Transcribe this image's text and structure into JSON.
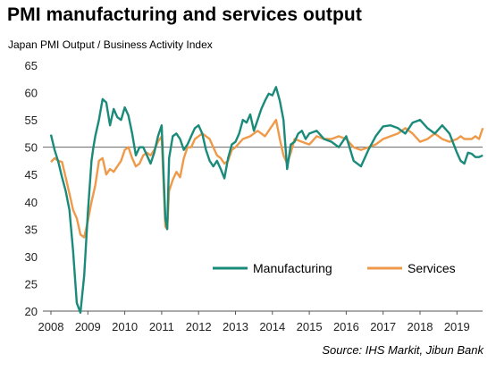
{
  "title": "PMI manufacturing and services output",
  "ylabel": "Japan PMI Output / Business Activity Index",
  "source": "Source: IHS Markit, Jibun Bank",
  "colors": {
    "manufacturing": "#1a8a7a",
    "services": "#ef9a4a",
    "axis": "#555555",
    "refline": "#666666"
  },
  "chart_data": {
    "type": "line",
    "title": "PMI manufacturing and services output",
    "ylabel": "Japan PMI Output / Business Activity Index",
    "xlabel": "",
    "ylim": [
      20,
      65
    ],
    "y_ticks": [
      20,
      25,
      30,
      35,
      40,
      45,
      50,
      55,
      60,
      65
    ],
    "x_tick_labels": [
      "2008",
      "2009",
      "2010",
      "2011",
      "2012",
      "2013",
      "2014",
      "2015",
      "2016",
      "2017",
      "2018",
      "2019"
    ],
    "x_range": [
      2008.0,
      2019.7
    ],
    "reference_line": 50,
    "legend_position": "bottom-right",
    "grid": false,
    "series": [
      {
        "name": "Manufacturing",
        "x": [
          2008.0,
          2008.1,
          2008.2,
          2008.3,
          2008.4,
          2008.5,
          2008.6,
          2008.7,
          2008.8,
          2008.9,
          2009.0,
          2009.1,
          2009.15,
          2009.2,
          2009.3,
          2009.4,
          2009.5,
          2009.6,
          2009.7,
          2009.8,
          2009.9,
          2010.0,
          2010.1,
          2010.2,
          2010.3,
          2010.4,
          2010.5,
          2010.6,
          2010.7,
          2010.8,
          2010.9,
          2011.0,
          2011.1,
          2011.15,
          2011.2,
          2011.3,
          2011.4,
          2011.5,
          2011.6,
          2011.7,
          2011.8,
          2011.9,
          2012.0,
          2012.1,
          2012.2,
          2012.3,
          2012.4,
          2012.5,
          2012.6,
          2012.7,
          2012.8,
          2012.9,
          2013.0,
          2013.1,
          2013.2,
          2013.3,
          2013.4,
          2013.5,
          2013.6,
          2013.7,
          2013.8,
          2013.9,
          2014.0,
          2014.1,
          2014.2,
          2014.3,
          2014.4,
          2014.5,
          2014.6,
          2014.7,
          2014.8,
          2014.9,
          2015.0,
          2015.2,
          2015.4,
          2015.6,
          2015.8,
          2016.0,
          2016.2,
          2016.4,
          2016.6,
          2016.8,
          2017.0,
          2017.2,
          2017.4,
          2017.6,
          2017.8,
          2018.0,
          2018.2,
          2018.4,
          2018.6,
          2018.8,
          2019.0,
          2019.1,
          2019.2,
          2019.3,
          2019.4,
          2019.5,
          2019.6,
          2019.7
        ],
        "values": [
          52.3,
          49.5,
          47.3,
          44.5,
          42.0,
          38.5,
          31.0,
          21.5,
          19.7,
          26.5,
          38.0,
          47.5,
          50.0,
          52.0,
          55.0,
          58.8,
          58.2,
          54.0,
          57.0,
          55.5,
          55.0,
          57.3,
          55.8,
          52.5,
          48.5,
          50.0,
          50.0,
          48.5,
          47.0,
          49.0,
          52.0,
          54.0,
          37.0,
          35.0,
          48.0,
          52.0,
          52.5,
          51.5,
          49.5,
          50.5,
          52.0,
          53.5,
          54.0,
          52.5,
          49.5,
          47.5,
          46.5,
          47.5,
          46.0,
          44.3,
          48.0,
          50.5,
          51.0,
          52.5,
          55.0,
          54.5,
          56.0,
          53.0,
          55.0,
          57.0,
          58.5,
          59.8,
          59.5,
          61.0,
          58.5,
          55.0,
          46.0,
          50.5,
          51.0,
          52.5,
          53.0,
          51.5,
          52.5,
          53.0,
          51.5,
          51.0,
          50.0,
          52.0,
          47.5,
          46.5,
          49.5,
          52.0,
          53.8,
          54.0,
          53.5,
          52.5,
          54.5,
          55.0,
          53.5,
          52.5,
          54.0,
          52.5,
          49.0,
          47.5,
          47.0,
          49.0,
          48.8,
          48.2,
          48.2,
          48.5
        ]
      },
      {
        "name": "Services",
        "x": [
          2008.0,
          2008.1,
          2008.2,
          2008.3,
          2008.4,
          2008.5,
          2008.6,
          2008.7,
          2008.8,
          2008.9,
          2009.0,
          2009.1,
          2009.2,
          2009.3,
          2009.4,
          2009.5,
          2009.6,
          2009.7,
          2009.8,
          2009.9,
          2010.0,
          2010.1,
          2010.2,
          2010.3,
          2010.4,
          2010.5,
          2010.6,
          2010.7,
          2010.8,
          2010.9,
          2011.0,
          2011.1,
          2011.15,
          2011.2,
          2011.3,
          2011.4,
          2011.5,
          2011.6,
          2011.7,
          2011.8,
          2011.9,
          2012.0,
          2012.1,
          2012.2,
          2012.3,
          2012.4,
          2012.5,
          2012.6,
          2012.7,
          2012.8,
          2012.9,
          2013.0,
          2013.2,
          2013.4,
          2013.6,
          2013.8,
          2014.0,
          2014.1,
          2014.2,
          2014.3,
          2014.4,
          2014.5,
          2014.6,
          2014.8,
          2015.0,
          2015.2,
          2015.4,
          2015.6,
          2015.8,
          2016.0,
          2016.2,
          2016.4,
          2016.6,
          2016.8,
          2017.0,
          2017.2,
          2017.4,
          2017.6,
          2017.8,
          2018.0,
          2018.2,
          2018.4,
          2018.6,
          2018.8,
          2019.0,
          2019.1,
          2019.2,
          2019.3,
          2019.4,
          2019.5,
          2019.6,
          2019.7
        ],
        "values": [
          47.3,
          48.0,
          47.5,
          47.3,
          44.5,
          41.5,
          38.5,
          37.0,
          34.0,
          33.5,
          36.5,
          40.0,
          43.0,
          47.5,
          48.0,
          45.0,
          46.0,
          45.5,
          46.5,
          47.5,
          49.5,
          50.0,
          48.0,
          46.5,
          47.0,
          48.5,
          49.0,
          48.5,
          49.5,
          51.0,
          52.0,
          35.5,
          35.0,
          42.0,
          44.0,
          45.5,
          44.5,
          48.0,
          50.0,
          50.0,
          51.5,
          52.0,
          52.5,
          52.0,
          51.5,
          50.0,
          48.5,
          48.0,
          47.0,
          47.5,
          49.5,
          50.0,
          51.5,
          52.0,
          53.0,
          52.0,
          54.0,
          55.0,
          51.5,
          48.5,
          47.0,
          49.0,
          51.5,
          51.0,
          50.5,
          52.0,
          51.5,
          51.5,
          52.0,
          51.5,
          50.0,
          49.5,
          50.0,
          50.5,
          51.5,
          52.0,
          52.5,
          53.5,
          52.5,
          51.0,
          51.5,
          52.5,
          51.5,
          51.0,
          51.5,
          52.0,
          51.5,
          51.5,
          51.5,
          52.0,
          51.5,
          53.5
        ]
      }
    ]
  }
}
